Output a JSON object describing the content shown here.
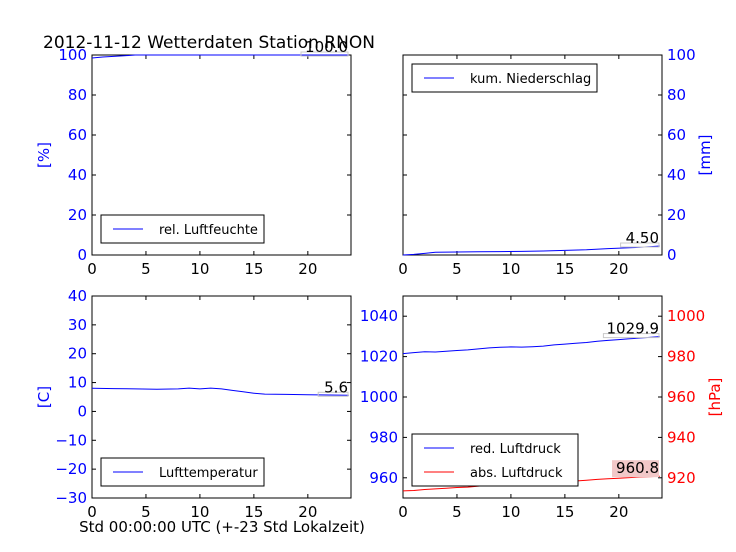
{
  "page": {
    "title": "2012-11-12 Wetterdaten Station RNON",
    "xlabel": "Std 00:00:00 UTC (+-23 Std Lokalzeit)"
  },
  "colors": {
    "blue": "#0000ff",
    "red": "#ff0000",
    "highlight": "#f2c8c8"
  },
  "chart_data": [
    {
      "id": "humidity",
      "type": "line",
      "xlim": [
        0,
        24
      ],
      "ylim": [
        0,
        100
      ],
      "xticks": [
        "0",
        "5",
        "10",
        "15",
        "20"
      ],
      "yticks": [
        "0",
        "20",
        "40",
        "60",
        "80",
        "100"
      ],
      "ylabel": "[%]",
      "legend_position": "lower-left",
      "end_label": "100.0",
      "series": [
        {
          "name": "rel. Luftfeuchte",
          "color": "#0000ff",
          "x": [
            0,
            1,
            2,
            3,
            4,
            6,
            8,
            12,
            16,
            20,
            23.8
          ],
          "y": [
            98.5,
            99.0,
            99.3,
            99.6,
            100,
            100,
            100,
            100,
            100,
            100,
            100
          ]
        }
      ]
    },
    {
      "id": "precipitation",
      "type": "line",
      "xlim": [
        0,
        24
      ],
      "ylim": [
        0,
        100
      ],
      "xticks": [
        "0",
        "5",
        "10",
        "15",
        "20"
      ],
      "yticks": [
        "0",
        "20",
        "40",
        "60",
        "80",
        "100"
      ],
      "ylabel": "[mm]",
      "legend_position": "upper-left",
      "end_label": "4.50",
      "series": [
        {
          "name": "kum. Niederschlag",
          "color": "#0000ff",
          "x": [
            0,
            1,
            2,
            3,
            5,
            7,
            9,
            11,
            13,
            15,
            17,
            19,
            21,
            23,
            23.8
          ],
          "y": [
            0.0,
            0.3,
            0.8,
            1.4,
            1.5,
            1.6,
            1.7,
            1.8,
            2.0,
            2.3,
            2.6,
            3.2,
            3.6,
            4.2,
            4.5
          ]
        }
      ]
    },
    {
      "id": "temperature",
      "type": "line",
      "xlim": [
        0,
        24
      ],
      "ylim": [
        -30,
        40
      ],
      "xticks": [
        "0",
        "5",
        "10",
        "15",
        "20"
      ],
      "yticks": [
        "−30",
        "−20",
        "−10",
        "0",
        "10",
        "20",
        "30",
        "40"
      ],
      "ylabel": "[C]",
      "legend_position": "lower-left",
      "end_label": "5.6",
      "series": [
        {
          "name": "Lufttemperatur",
          "color": "#0000ff",
          "x": [
            0,
            2,
            4,
            6,
            8,
            9,
            10,
            11,
            12,
            13,
            14,
            15,
            16,
            18,
            20,
            22,
            23.8
          ],
          "y": [
            8.0,
            7.9,
            7.8,
            7.7,
            7.8,
            8.1,
            7.8,
            8.1,
            7.8,
            7.3,
            6.8,
            6.3,
            6.0,
            5.9,
            5.8,
            5.7,
            5.6
          ]
        }
      ]
    },
    {
      "id": "pressure",
      "type": "line",
      "xlim": [
        0,
        24
      ],
      "ylim": [
        950,
        1050
      ],
      "xticks": [
        "0",
        "5",
        "10",
        "15",
        "20"
      ],
      "yticks": [
        "960",
        "980",
        "1000",
        "1020",
        "1040"
      ],
      "ylim_right": [
        910,
        1010
      ],
      "yticks_right": [
        "920",
        "940",
        "960",
        "980",
        "1000"
      ],
      "ylabel_right": "[hPa]",
      "legend_position": "lower-left",
      "series": [
        {
          "name": "red. Luftdruck",
          "color": "#0000ff",
          "end_label": "1029.9",
          "x": [
            0,
            1,
            2,
            3,
            4,
            5,
            6,
            7,
            8,
            9,
            10,
            11,
            12,
            13,
            14,
            15,
            16,
            17,
            18,
            19,
            20,
            21,
            22,
            23,
            23.8
          ],
          "y": [
            1021.5,
            1022.0,
            1022.4,
            1022.3,
            1022.6,
            1023.0,
            1023.3,
            1023.8,
            1024.3,
            1024.6,
            1024.8,
            1024.7,
            1024.9,
            1025.2,
            1025.8,
            1026.2,
            1026.6,
            1027.0,
            1027.6,
            1028.0,
            1028.4,
            1028.8,
            1029.2,
            1029.6,
            1029.9
          ]
        },
        {
          "name": "abs. Luftdruck",
          "color": "#ff0000",
          "end_label": "960.8",
          "x": [
            0,
            1,
            2,
            3,
            4,
            5,
            6,
            7,
            8,
            9,
            10,
            11,
            12,
            13,
            14,
            15,
            16,
            17,
            18,
            19,
            20,
            21,
            22,
            23,
            23.8
          ],
          "y": [
            953.5,
            953.7,
            954.2,
            954.5,
            954.8,
            955.2,
            955.4,
            955.9,
            956.4,
            956.7,
            957.0,
            956.9,
            957.2,
            957.4,
            957.8,
            958.1,
            958.4,
            958.8,
            959.2,
            959.5,
            959.8,
            960.1,
            960.4,
            960.6,
            960.8
          ]
        }
      ]
    }
  ]
}
